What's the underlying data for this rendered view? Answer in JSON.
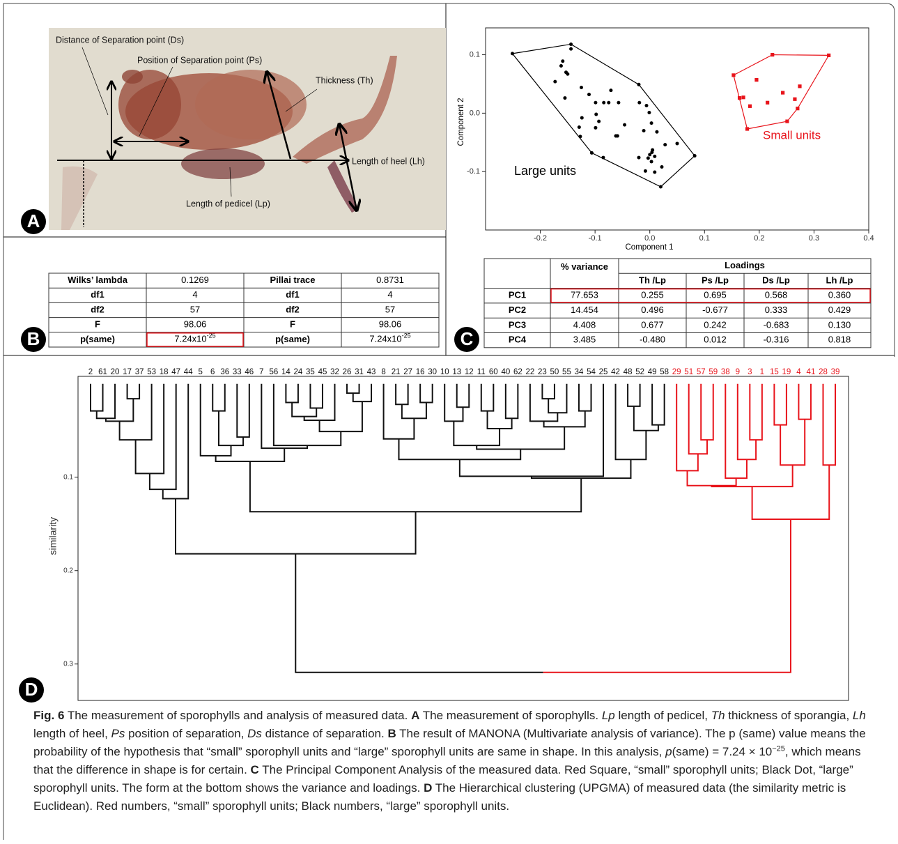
{
  "panel_a": {
    "letter": "A",
    "labels": [
      "Distance of Separation point (Ds)",
      "Position of Separation point (Ps)",
      "Thickness (Th)",
      "Length of heel (Lh)",
      "Length of pedicel (Lp)"
    ]
  },
  "panel_b": {
    "letter": "B",
    "table": {
      "rows": [
        [
          "Wilks’ lambda",
          "0.1269",
          "Pillai trace",
          "0.8731"
        ],
        [
          "df1",
          "4",
          "df1",
          "4"
        ],
        [
          "df2",
          "57",
          "df2",
          "57"
        ],
        [
          "F",
          "98.06",
          "F",
          "98.06"
        ],
        [
          "p(same)",
          {
            "text": "7.24x10",
            "sup": "-25"
          },
          "p(same)",
          {
            "text": "7.24x10",
            "sup": "-25"
          }
        ]
      ],
      "highlight": [
        4,
        1
      ]
    }
  },
  "panel_c": {
    "letter": "C",
    "table": {
      "variance_header": "% variance",
      "loadings_header": "Loadings",
      "loadings": [
        "Th /Lp",
        "Ps /Lp",
        "Ds /Lp",
        "Lh /Lp"
      ],
      "rows": [
        [
          "PC1",
          "77.653",
          "0.255",
          "0.695",
          "0.568",
          "0.360"
        ],
        [
          "PC2",
          "14.454",
          "0.496",
          "-0.677",
          "0.333",
          "0.429"
        ],
        [
          "PC3",
          "4.408",
          "0.677",
          "0.242",
          "-0.683",
          "0.130"
        ],
        [
          "PC4",
          "3.485",
          "-0.480",
          "0.012",
          "-0.316",
          "0.818"
        ]
      ],
      "highlight_row": 0
    }
  },
  "panel_d": {
    "letter": "D"
  },
  "chart_data": [
    {
      "type": "scatter",
      "xlabel": "Component 1",
      "ylabel": "Component 2",
      "xlim": [
        -0.3,
        0.4
      ],
      "ylim": [
        -0.2,
        0.146
      ],
      "xticks": [
        -0.2,
        -0.1,
        {
          "value": 0,
          "label": "0.0"
        },
        0.1,
        0.2,
        0.3,
        0.4
      ],
      "yticks": [
        -0.1,
        {
          "value": 0,
          "label": "0.0"
        },
        0.1
      ],
      "series": [
        {
          "name": "Large units",
          "color": "#000000",
          "marker": "circle",
          "hull": true,
          "x": [
            -0.251,
            -0.144,
            -0.02,
            0.082,
            0.02,
            -0.085,
            -0.106,
            -0.127,
            -0.144,
            -0.159,
            -0.162,
            -0.153,
            -0.15,
            -0.173,
            -0.125,
            -0.155,
            -0.111,
            -0.071,
            -0.057,
            -0.099,
            -0.084,
            -0.075,
            -0.019,
            -0.006,
            -0.001,
            -0.098,
            -0.124,
            -0.093,
            -0.046,
            0.003,
            -0.129,
            -0.099,
            -0.062,
            -0.059,
            -0.011,
            0.013,
            0.05,
            0.028,
            0.005,
            0.0,
            0.009,
            -0.003,
            -0.02,
            0.003,
            0.022,
            -0.008,
            0.009,
            0.004
          ],
          "values": [
            0.102,
            0.118,
            0.049,
            -0.073,
            -0.126,
            -0.076,
            -0.068,
            -0.04,
            0.11,
            0.089,
            0.081,
            0.07,
            0.067,
            0.054,
            0.044,
            0.026,
            0.032,
            0.039,
            0.018,
            0.018,
            0.018,
            0.018,
            0.018,
            0.013,
            0.001,
            -0.002,
            -0.008,
            -0.014,
            -0.02,
            -0.017,
            -0.024,
            -0.025,
            -0.039,
            -0.039,
            -0.03,
            -0.032,
            -0.052,
            -0.054,
            -0.063,
            -0.071,
            -0.074,
            -0.077,
            -0.076,
            -0.083,
            -0.092,
            -0.099,
            -0.101,
            -0.067
          ]
        },
        {
          "name": "Small units",
          "color": "#e8141b",
          "marker": "square",
          "hull": true,
          "x": [
            0.153,
            0.224,
            0.327,
            0.27,
            0.251,
            0.178,
            0.164,
            0.195,
            0.243,
            0.274,
            0.171,
            0.183,
            0.215,
            0.265
          ],
          "values": [
            0.065,
            0.1,
            0.099,
            0.008,
            -0.014,
            -0.027,
            0.026,
            0.057,
            0.035,
            0.046,
            0.027,
            0.012,
            0.018,
            0.024
          ]
        }
      ]
    },
    {
      "type": "dendrogram",
      "ylabel": "similarity",
      "ylim": [
        -0.008,
        0.339
      ],
      "yticks": [
        0.1,
        0.2,
        0.3
      ],
      "series": [
        {
          "color": "#111111",
          "leaves": [
            "2",
            "61",
            "20",
            "17",
            "37",
            "53",
            "18",
            "47",
            "44",
            "5",
            "6",
            "36",
            "33",
            "46",
            "7",
            "56",
            "14",
            "24",
            "35",
            "45",
            "32",
            "26",
            "31",
            "43",
            "8",
            "21",
            "27",
            "16",
            "30",
            "10",
            "13",
            "12",
            "11",
            "60",
            "40",
            "62",
            "22",
            "23",
            "50",
            "55",
            "34",
            "54",
            "25",
            "42",
            "48",
            "52",
            "49",
            "58"
          ]
        },
        {
          "color": "#e8141b",
          "leaves": [
            "29",
            "51",
            "57",
            "59",
            "38",
            "9",
            "3",
            "1",
            "15",
            "19",
            "4",
            "41",
            "28",
            "39"
          ]
        }
      ],
      "merges": [
        [
          0,
          1,
          0.029
        ],
        [
          62,
          2,
          0.037
        ],
        [
          3,
          4,
          0.016
        ],
        [
          63,
          64,
          0.04
        ],
        [
          65,
          5,
          0.06
        ],
        [
          66,
          6,
          0.096
        ],
        [
          67,
          7,
          0.113
        ],
        [
          68,
          8,
          0.123
        ],
        [
          10,
          11,
          0.029
        ],
        [
          12,
          13,
          0.057
        ],
        [
          70,
          71,
          0.066
        ],
        [
          9,
          72,
          0.077
        ],
        [
          16,
          17,
          0.02
        ],
        [
          18,
          19,
          0.026
        ],
        [
          74,
          75,
          0.035
        ],
        [
          76,
          20,
          0.039
        ],
        [
          21,
          22,
          0.01
        ],
        [
          78,
          23,
          0.019
        ],
        [
          77,
          79,
          0.051
        ],
        [
          15,
          80,
          0.066
        ],
        [
          14,
          81,
          0.069
        ],
        [
          73,
          82,
          0.083
        ],
        [
          25,
          26,
          0.022
        ],
        [
          27,
          28,
          0.02
        ],
        [
          84,
          85,
          0.037
        ],
        [
          24,
          86,
          0.059
        ],
        [
          30,
          31,
          0.025
        ],
        [
          29,
          88,
          0.04
        ],
        [
          32,
          33,
          0.029
        ],
        [
          34,
          35,
          0.037
        ],
        [
          90,
          91,
          0.048
        ],
        [
          89,
          92,
          0.066
        ],
        [
          37,
          38,
          0.016
        ],
        [
          94,
          39,
          0.031
        ],
        [
          36,
          95,
          0.04
        ],
        [
          40,
          41,
          0.029
        ],
        [
          96,
          97,
          0.046
        ],
        [
          93,
          98,
          0.07
        ],
        [
          87,
          99,
          0.081
        ],
        [
          100,
          42,
          0.099
        ],
        [
          44,
          45,
          0.024
        ],
        [
          46,
          47,
          0.044
        ],
        [
          102,
          103,
          0.05
        ],
        [
          43,
          104,
          0.081
        ],
        [
          101,
          105,
          0.101
        ],
        [
          83,
          106,
          0.137
        ],
        [
          69,
          107,
          0.182
        ],
        [
          50,
          51,
          0.06
        ],
        [
          49,
          109,
          0.075
        ],
        [
          48,
          110,
          0.093
        ],
        [
          54,
          55,
          0.06
        ],
        [
          53,
          112,
          0.081
        ],
        [
          52,
          113,
          0.101
        ],
        [
          111,
          114,
          0.109
        ],
        [
          56,
          57,
          0.044
        ],
        [
          58,
          59,
          0.038
        ],
        [
          116,
          117,
          0.087
        ],
        [
          60,
          61,
          0.087
        ],
        [
          115,
          118,
          0.11
        ],
        [
          120,
          119,
          0.145
        ],
        [
          108,
          121,
          0.309
        ]
      ]
    }
  ],
  "caption": [
    {
      "text": "Fig. 6",
      "style": "bold"
    },
    {
      "text": "  The measurement of sporophylls and analysis of measured data. "
    },
    {
      "text": "A",
      "style": "bold"
    },
    {
      "text": " The measurement of sporophylls. "
    },
    {
      "text": "Lp",
      "style": "italic"
    },
    {
      "text": " length of pedicel, "
    },
    {
      "text": "Th",
      "style": "italic"
    },
    {
      "text": " thickness of sporangia, "
    },
    {
      "text": "Lh",
      "style": "italic"
    },
    {
      "text": " length of heel, "
    },
    {
      "text": "Ps",
      "style": "italic"
    },
    {
      "text": " position of separation, "
    },
    {
      "text": "Ds",
      "style": "italic"
    },
    {
      "text": " distance of separation. "
    },
    {
      "text": "B",
      "style": "bold"
    },
    {
      "text": " The result of MANONA (Multivariate analysis of variance). The p (same) value means the probability of the hypothesis that “small” sporophyll units and “large” sporophyll units are same in shape. In this analysis, "
    },
    {
      "text": "p",
      "style": "italic"
    },
    {
      "text": "(same) = 7.24 × 10"
    },
    {
      "text": "−25",
      "style": "sup"
    },
    {
      "text": ", which means that the difference in shape is for certain. "
    },
    {
      "text": "C",
      "style": "bold"
    },
    {
      "text": " The Principal Component Analysis of the measured data. Red Square, “small” sporophyll units; Black Dot, “large” sporophyll units. The form at the bottom shows the variance and loadings. "
    },
    {
      "text": "D",
      "style": "bold"
    },
    {
      "text": " The Hierarchical clustering (UPGMA) of measured data (the similarity metric is Euclidean). Red numbers, “small” sporophyll units; Black numbers, “large” sporophyll units."
    }
  ]
}
